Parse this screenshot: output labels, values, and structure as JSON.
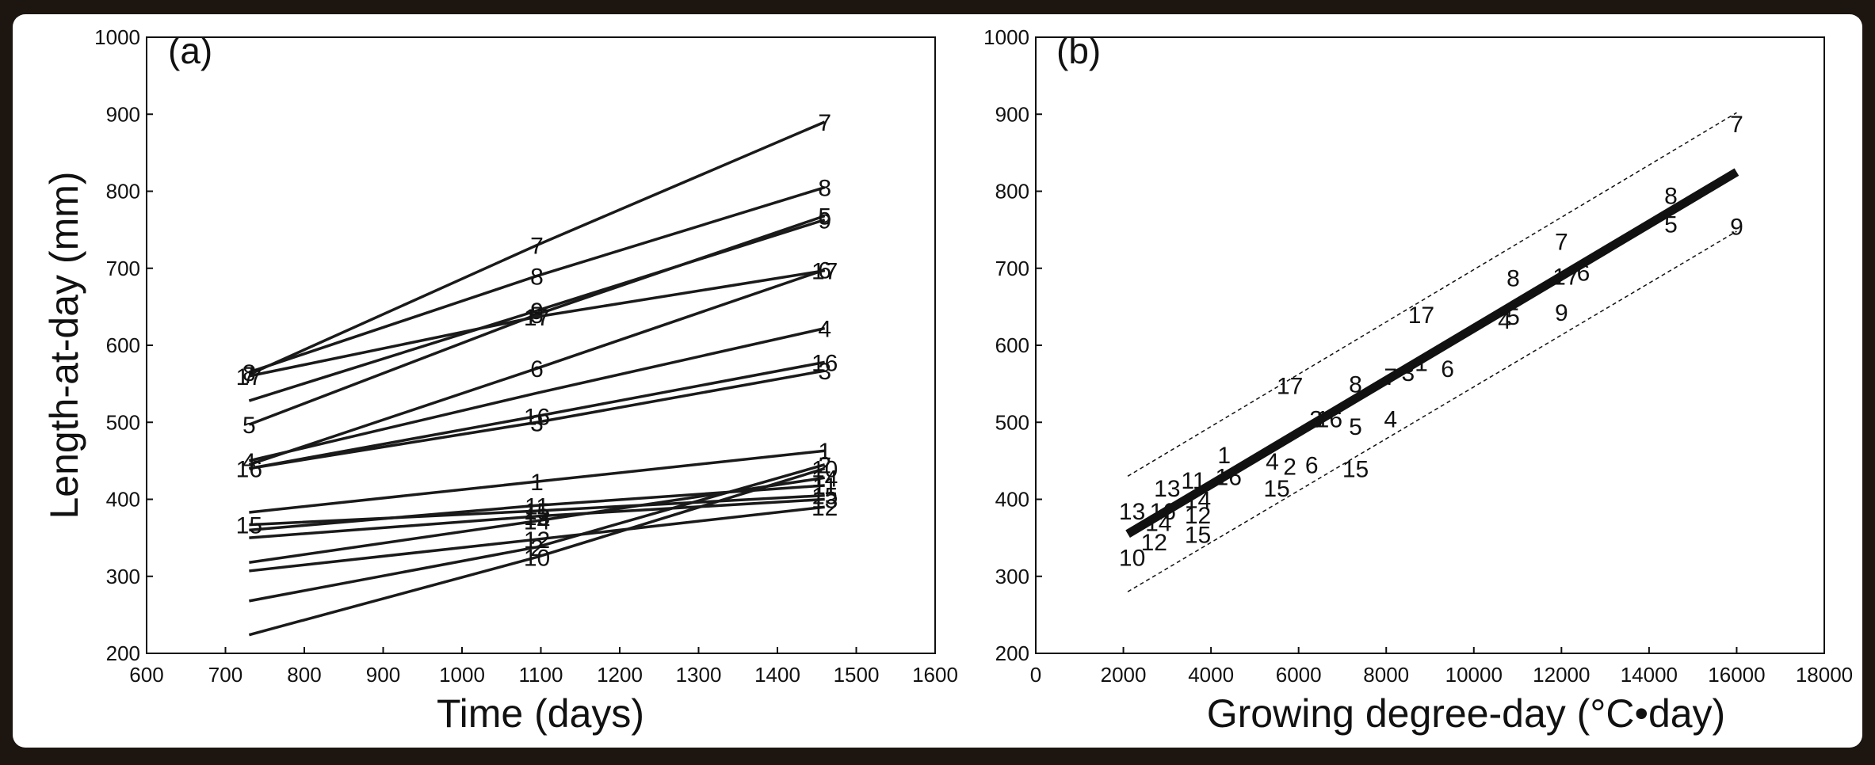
{
  "chart_data": [
    {
      "type": "line",
      "panel_label": "(a)",
      "xlabel": "Time (days)",
      "ylabel": "Length-at-day (mm)",
      "xlim": [
        600,
        1600
      ],
      "ylim": [
        200,
        1000
      ],
      "xticks": [
        "600",
        "700",
        "800",
        "900",
        "1000",
        "1100",
        "1200",
        "1300",
        "1400",
        "1500",
        "1600"
      ],
      "yticks": [
        "200",
        "300",
        "400",
        "500",
        "600",
        "700",
        "800",
        "900",
        "1000"
      ],
      "grid": false,
      "x": [
        730,
        1095,
        1460
      ],
      "series": [
        {
          "name": "1",
          "values": [
            383,
            423,
            463
          ],
          "labels": [
            null,
            "1",
            "1"
          ]
        },
        {
          "name": "2",
          "values": [
            268,
            338,
            445
          ],
          "labels": [
            null,
            "2",
            "2"
          ]
        },
        {
          "name": "3",
          "values": [
            440,
            500,
            567
          ],
          "labels": [
            null,
            "3",
            "3"
          ]
        },
        {
          "name": "4",
          "values": [
            450,
            538,
            622
          ],
          "labels": [
            "4",
            null,
            "4"
          ]
        },
        {
          "name": "5",
          "values": [
            497,
            640,
            768
          ],
          "labels": [
            "5",
            "5",
            "5"
          ]
        },
        {
          "name": "6",
          "values": [
            445,
            570,
            698
          ],
          "labels": [
            null,
            "6",
            "6"
          ]
        },
        {
          "name": "7",
          "values": [
            562,
            730,
            890
          ],
          "labels": [
            "7",
            "7",
            "7"
          ]
        },
        {
          "name": "8",
          "values": [
            565,
            690,
            805
          ],
          "labels": [
            "8",
            "8",
            "8"
          ]
        },
        {
          "name": "9",
          "values": [
            528,
            645,
            763
          ],
          "labels": [
            null,
            "9",
            "9"
          ]
        },
        {
          "name": "10",
          "values": [
            224,
            325,
            440
          ],
          "labels": [
            null,
            "10",
            "10"
          ]
        },
        {
          "name": "11",
          "values": [
            360,
            392,
            418
          ],
          "labels": [
            null,
            "11",
            "11"
          ]
        },
        {
          "name": "12",
          "values": [
            307,
            348,
            390
          ],
          "labels": [
            null,
            "12",
            "12"
          ]
        },
        {
          "name": "13",
          "values": [
            350,
            378,
            400
          ],
          "labels": [
            null,
            "13",
            "13"
          ]
        },
        {
          "name": "14",
          "values": [
            318,
            372,
            428
          ],
          "labels": [
            null,
            "14",
            "14"
          ]
        },
        {
          "name": "15",
          "values": [
            367,
            385,
            405
          ],
          "labels": [
            "15",
            "15",
            "15"
          ]
        },
        {
          "name": "16",
          "values": [
            440,
            508,
            578
          ],
          "labels": [
            "16",
            "16",
            "16"
          ]
        },
        {
          "name": "17",
          "values": [
            560,
            637,
            697
          ],
          "labels": [
            "17",
            "17",
            "17"
          ]
        }
      ]
    },
    {
      "type": "scatter",
      "panel_label": "(b)",
      "xlabel": "Growing degree-day (°C•day)",
      "ylabel": "",
      "xlim": [
        0,
        18000
      ],
      "ylim": [
        200,
        1000
      ],
      "xticks": [
        "0",
        "2000",
        "4000",
        "6000",
        "8000",
        "10000",
        "12000",
        "14000",
        "16000",
        "18000"
      ],
      "yticks": [
        "200",
        "300",
        "400",
        "500",
        "600",
        "700",
        "800",
        "900",
        "1000"
      ],
      "grid": false,
      "points": [
        {
          "label": "13",
          "x": 2200,
          "y": 385
        },
        {
          "label": "10",
          "x": 2200,
          "y": 325
        },
        {
          "label": "12",
          "x": 2700,
          "y": 345
        },
        {
          "label": "14",
          "x": 2800,
          "y": 370
        },
        {
          "label": "16",
          "x": 2900,
          "y": 385
        },
        {
          "label": "13",
          "x": 3000,
          "y": 415
        },
        {
          "label": "11",
          "x": 3600,
          "y": 425
        },
        {
          "label": "14",
          "x": 3700,
          "y": 400
        },
        {
          "label": "12",
          "x": 3700,
          "y": 380
        },
        {
          "label": "15",
          "x": 3700,
          "y": 355
        },
        {
          "label": "1",
          "x": 4300,
          "y": 458
        },
        {
          "label": "16",
          "x": 4400,
          "y": 430
        },
        {
          "label": "4",
          "x": 5400,
          "y": 450
        },
        {
          "label": "15",
          "x": 5500,
          "y": 415
        },
        {
          "label": "2",
          "x": 5800,
          "y": 443
        },
        {
          "label": "17",
          "x": 5800,
          "y": 548
        },
        {
          "label": "6",
          "x": 6300,
          "y": 445
        },
        {
          "label": "3",
          "x": 6400,
          "y": 505
        },
        {
          "label": "16",
          "x": 6700,
          "y": 505
        },
        {
          "label": "15",
          "x": 7300,
          "y": 440
        },
        {
          "label": "5",
          "x": 7300,
          "y": 495
        },
        {
          "label": "8",
          "x": 7300,
          "y": 550
        },
        {
          "label": "4",
          "x": 8100,
          "y": 505
        },
        {
          "label": "7",
          "x": 8100,
          "y": 560
        },
        {
          "label": "3",
          "x": 8500,
          "y": 565
        },
        {
          "label": "1",
          "x": 8800,
          "y": 578
        },
        {
          "label": "17",
          "x": 8800,
          "y": 640
        },
        {
          "label": "6",
          "x": 9400,
          "y": 570
        },
        {
          "label": "4",
          "x": 10700,
          "y": 633
        },
        {
          "label": "5",
          "x": 10900,
          "y": 638
        },
        {
          "label": "8",
          "x": 10900,
          "y": 688
        },
        {
          "label": "9",
          "x": 12000,
          "y": 643
        },
        {
          "label": "7",
          "x": 12000,
          "y": 735
        },
        {
          "label": "17",
          "x": 12100,
          "y": 690
        },
        {
          "label": "6",
          "x": 12500,
          "y": 695
        },
        {
          "label": "5",
          "x": 14500,
          "y": 758
        },
        {
          "label": "8",
          "x": 14500,
          "y": 795
        },
        {
          "label": "9",
          "x": 16000,
          "y": 755
        },
        {
          "label": "7",
          "x": 16000,
          "y": 888
        }
      ],
      "fit_line": {
        "x": [
          2100,
          16000
        ],
        "y": [
          355,
          825
        ]
      },
      "upper_band": {
        "x": [
          2100,
          16000
        ],
        "y": [
          430,
          902
        ]
      },
      "lower_band": {
        "x": [
          2100,
          16000
        ],
        "y": [
          280,
          748
        ]
      }
    }
  ]
}
